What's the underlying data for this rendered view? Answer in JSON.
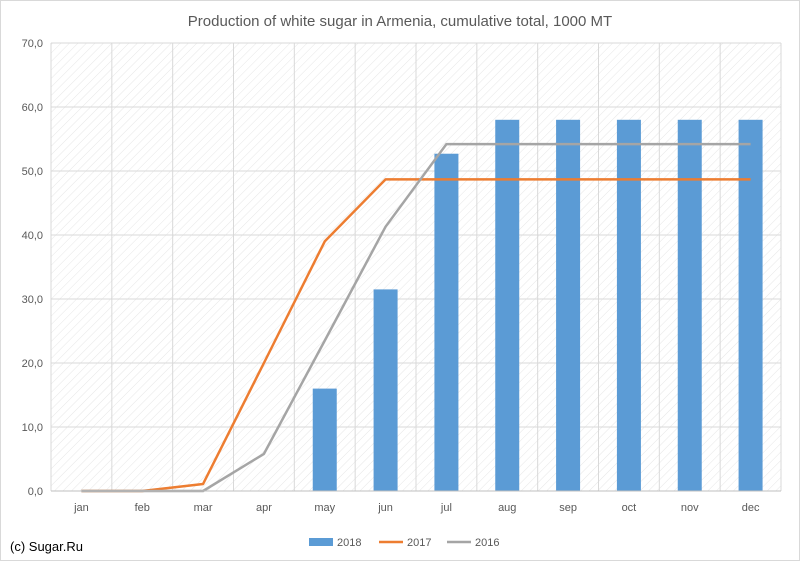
{
  "chart_data": {
    "type": "bar+line",
    "title": "Production of white sugar in Armenia, cumulative total, 1000 MT",
    "categories": [
      "jan",
      "feb",
      "mar",
      "apr",
      "may",
      "jun",
      "jul",
      "aug",
      "sep",
      "oct",
      "nov",
      "dec"
    ],
    "y_ticks": [
      "0,0",
      "10,0",
      "20,0",
      "30,0",
      "40,0",
      "50,0",
      "60,0",
      "70,0"
    ],
    "ylim": [
      0,
      70
    ],
    "grid": true,
    "grid_style": "hatched",
    "legend_position": "bottom",
    "series": [
      {
        "name": "2018",
        "kind": "bar",
        "color": "#5b9bd5",
        "values": [
          null,
          null,
          null,
          null,
          16.0,
          31.5,
          52.7,
          58.0,
          58.0,
          58.0,
          58.0,
          58.0
        ]
      },
      {
        "name": "2017",
        "kind": "line",
        "color": "#ed7d31",
        "values": [
          0,
          0,
          1.1,
          20.0,
          39.0,
          48.7,
          48.7,
          48.7,
          48.7,
          48.7,
          48.7,
          48.7
        ]
      },
      {
        "name": "2016",
        "kind": "line",
        "color": "#a5a5a5",
        "values": [
          0,
          0,
          0,
          5.8,
          23.5,
          41.3,
          54.2,
          54.2,
          54.2,
          54.2,
          54.2,
          54.2
        ]
      }
    ]
  },
  "credit": "(c) Sugar.Ru"
}
